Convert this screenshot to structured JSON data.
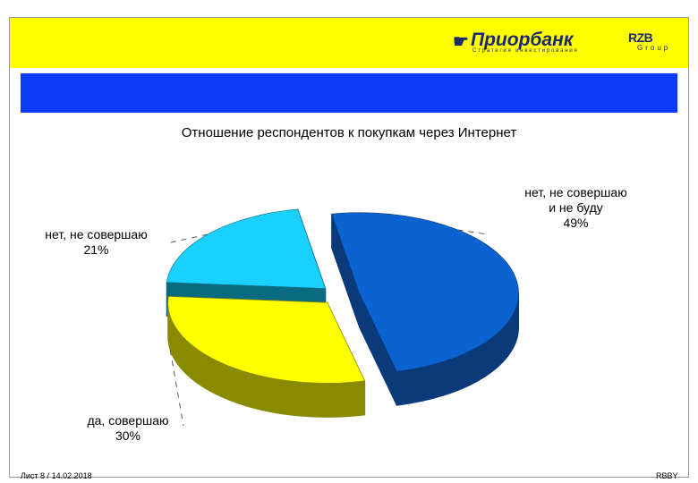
{
  "header": {
    "bank_name": "Приорбанк",
    "bank_mark": "☛",
    "bank_tagline": "Стратегия инвестирования",
    "group_logo": "RZB",
    "group_word": "Group"
  },
  "chart_data": {
    "type": "pie",
    "title": "Отношение респондентов к покупкам через Интернет",
    "three_d": true,
    "exploded": true,
    "slices": [
      {
        "label_lines": [
          "нет, не совершаю",
          "и не буду"
        ],
        "value": 49,
        "value_label": "49%",
        "color": "#0a63d0",
        "side_color": "#0a3a7a"
      },
      {
        "label_lines": [
          "да, совершаю"
        ],
        "value": 30,
        "value_label": "30%",
        "color": "#ffff00",
        "side_color": "#8a8a00"
      },
      {
        "label_lines": [
          "нет, не совершаю"
        ],
        "value": 21,
        "value_label": "21%",
        "color": "#19d0ff",
        "side_color": "#0a6a80"
      }
    ]
  },
  "footer": {
    "slide_info": "Лист 8 / 14.02.2018",
    "brand": "RBBY"
  }
}
